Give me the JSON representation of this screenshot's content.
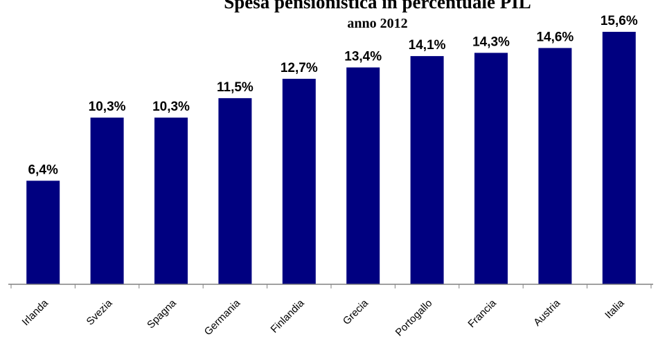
{
  "chart_data": {
    "type": "bar",
    "title": "Spesa pensionistica in percentuale PIL",
    "subtitle": "anno 2012",
    "categories": [
      "Irlanda",
      "Svezia",
      "Spagna",
      "Germania",
      "Finlandia",
      "Grecia",
      "Portogallo",
      "Francia",
      "Austria",
      "Italia"
    ],
    "values": [
      6.4,
      10.3,
      10.3,
      11.5,
      12.7,
      13.4,
      14.1,
      14.3,
      14.6,
      15.6
    ],
    "data_labels": [
      "6,4%",
      "10,3%",
      "10,3%",
      "11,5%",
      "12,7%",
      "13,4%",
      "14,1%",
      "14,3%",
      "14,6%",
      "15,6%"
    ],
    "xlabel": "",
    "ylabel": "",
    "ylim": [
      0,
      15.6
    ],
    "grid": false,
    "legend": "none",
    "bar_color": "#000080"
  }
}
